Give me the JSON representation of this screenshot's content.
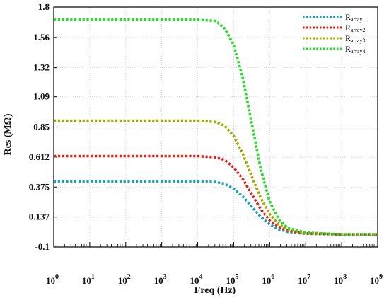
{
  "chart_data": {
    "type": "line",
    "xlabel": "Freq (Hz)",
    "ylabel": "Res (MΩ)",
    "xscale": "log",
    "xlim": [
      1,
      1000000000
    ],
    "ylim": [
      -0.1,
      1.8
    ],
    "yticks": [
      "1.8",
      "1.56",
      "1.32",
      "1.09",
      "0.85",
      "0.612",
      "0.375",
      "0.137",
      "-0.1"
    ],
    "ytick_values": [
      1.8,
      1.56,
      1.32,
      1.09,
      0.85,
      0.612,
      0.375,
      0.137,
      -0.1
    ],
    "xticks": [
      {
        "base": "10",
        "exp": "0",
        "value": 1
      },
      {
        "base": "10",
        "exp": "1",
        "value": 10
      },
      {
        "base": "10",
        "exp": "2",
        "value": 100
      },
      {
        "base": "10",
        "exp": "3",
        "value": 1000
      },
      {
        "base": "10",
        "exp": "4",
        "value": 10000
      },
      {
        "base": "10",
        "exp": "5",
        "value": 100000
      },
      {
        "base": "10",
        "exp": "6",
        "value": 1000000
      },
      {
        "base": "10",
        "exp": "7",
        "value": 10000000
      },
      {
        "base": "10",
        "exp": "8",
        "value": 100000000
      },
      {
        "base": "10",
        "exp": "9",
        "value": 1000000000
      }
    ],
    "grid": true,
    "legend_position": "top-right",
    "series": [
      {
        "name": "R",
        "subscript": "array1",
        "color": "#1aa3b5",
        "x": [
          1,
          10,
          100,
          1000,
          10000,
          31623,
          56234,
          100000,
          177828,
          316228,
          562341,
          1000000,
          1778279,
          3162278,
          10000000,
          100000000,
          1000000000
        ],
        "y": [
          0.42,
          0.42,
          0.42,
          0.42,
          0.42,
          0.415,
          0.4,
          0.36,
          0.3,
          0.22,
          0.14,
          0.08,
          0.04,
          0.02,
          0.005,
          0.0,
          0.0
        ]
      },
      {
        "name": "R",
        "subscript": "array2",
        "color": "#e0241a",
        "x": [
          1,
          10,
          100,
          1000,
          10000,
          31623,
          56234,
          100000,
          177828,
          316228,
          562341,
          1000000,
          1778279,
          3162278,
          10000000,
          100000000,
          1000000000
        ],
        "y": [
          0.62,
          0.62,
          0.62,
          0.62,
          0.62,
          0.61,
          0.59,
          0.53,
          0.44,
          0.32,
          0.2,
          0.11,
          0.06,
          0.03,
          0.008,
          0.0,
          0.0
        ]
      },
      {
        "name": "R",
        "subscript": "array3",
        "color": "#a3a800",
        "x": [
          1,
          10,
          100,
          1000,
          10000,
          31623,
          56234,
          100000,
          177828,
          316228,
          562341,
          1000000,
          1778279,
          3162278,
          10000000,
          100000000,
          1000000000
        ],
        "y": [
          0.9,
          0.9,
          0.9,
          0.9,
          0.9,
          0.89,
          0.86,
          0.78,
          0.64,
          0.46,
          0.29,
          0.16,
          0.08,
          0.04,
          0.01,
          0.0,
          0.0
        ]
      },
      {
        "name": "R",
        "subscript": "array4",
        "color": "#22dd22",
        "x": [
          1,
          10,
          100,
          1000,
          10000,
          31623,
          56234,
          100000,
          177828,
          316228,
          562341,
          1000000,
          1778279,
          3162278,
          10000000,
          100000000,
          1000000000
        ],
        "y": [
          1.7,
          1.7,
          1.7,
          1.7,
          1.7,
          1.69,
          1.63,
          1.5,
          1.24,
          0.88,
          0.52,
          0.26,
          0.12,
          0.05,
          0.015,
          0.0,
          0.0
        ]
      }
    ]
  }
}
